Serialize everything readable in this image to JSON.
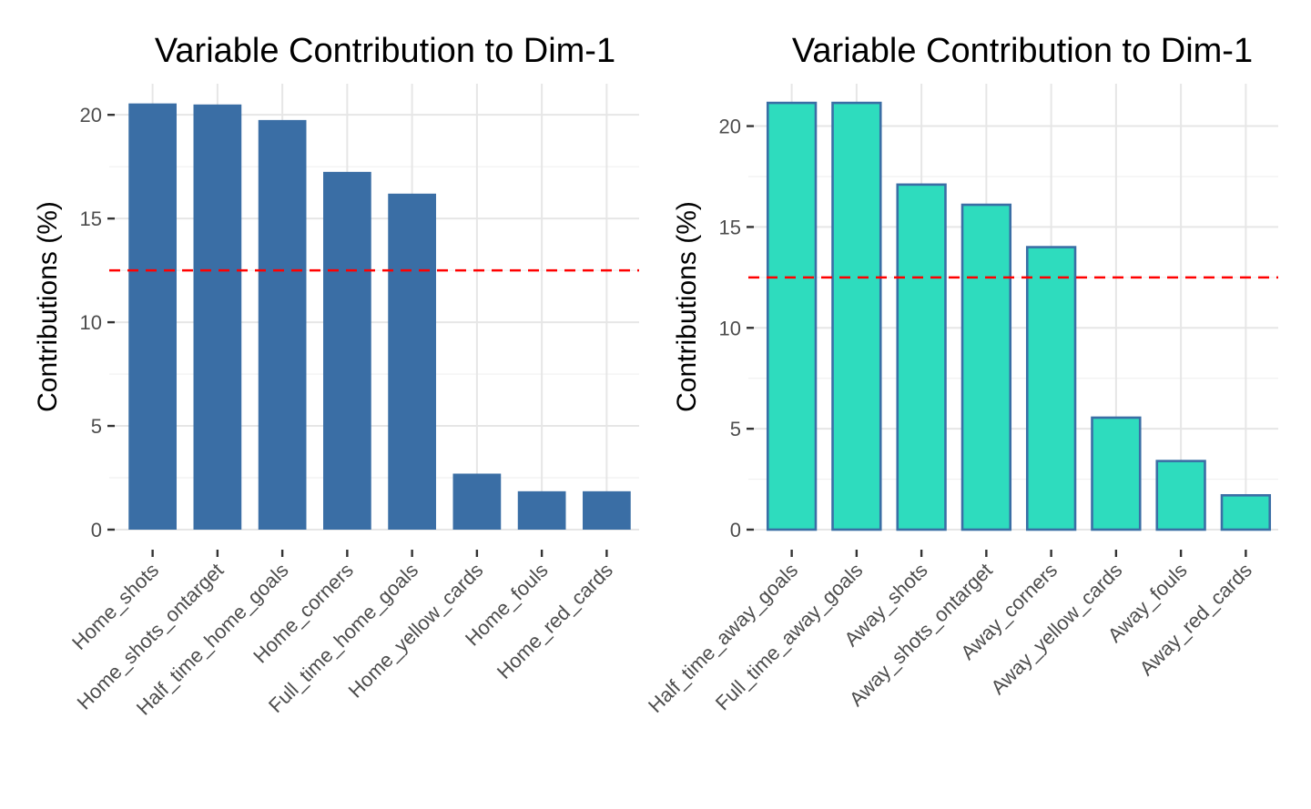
{
  "chart_data": [
    {
      "type": "bar",
      "title": "Variable Contribution to Dim-1",
      "xlabel": "",
      "ylabel": "Contributions (%)",
      "categories": [
        "Home_shots",
        "Home_shots_ontarget",
        "Half_time_home_goals",
        "Home_corners",
        "Full_time_home_goals",
        "Home_yellow_cards",
        "Home_fouls",
        "Home_red_cards"
      ],
      "values": [
        20.55,
        20.5,
        19.75,
        17.25,
        16.2,
        2.7,
        1.85,
        1.85
      ],
      "ylim": [
        0,
        21.5
      ],
      "yticks": [
        0,
        5,
        10,
        15,
        20
      ],
      "reference_line": 12.5,
      "grid": true,
      "colors": {
        "fill": "#3A6EA5",
        "outline": "#3A6EA5",
        "reference": "#FF0000"
      }
    },
    {
      "type": "bar",
      "title": "Variable Contribution to Dim-1",
      "xlabel": "",
      "ylabel": "Contributions (%)",
      "categories": [
        "Half_time_away_goals",
        "Full_time_away_goals",
        "Away_shots",
        "Away_shots_ontarget",
        "Away_corners",
        "Away_yellow_cards",
        "Away_fouls",
        "Away_red_cards"
      ],
      "values": [
        21.15,
        21.15,
        17.1,
        16.1,
        14.0,
        5.55,
        3.4,
        1.7
      ],
      "ylim": [
        0,
        22.1
      ],
      "yticks": [
        0,
        5,
        10,
        15,
        20
      ],
      "reference_line": 12.5,
      "grid": true,
      "colors": {
        "fill": "#2EDCBE",
        "outline": "#3A6EA5",
        "reference": "#FF0000"
      }
    }
  ]
}
